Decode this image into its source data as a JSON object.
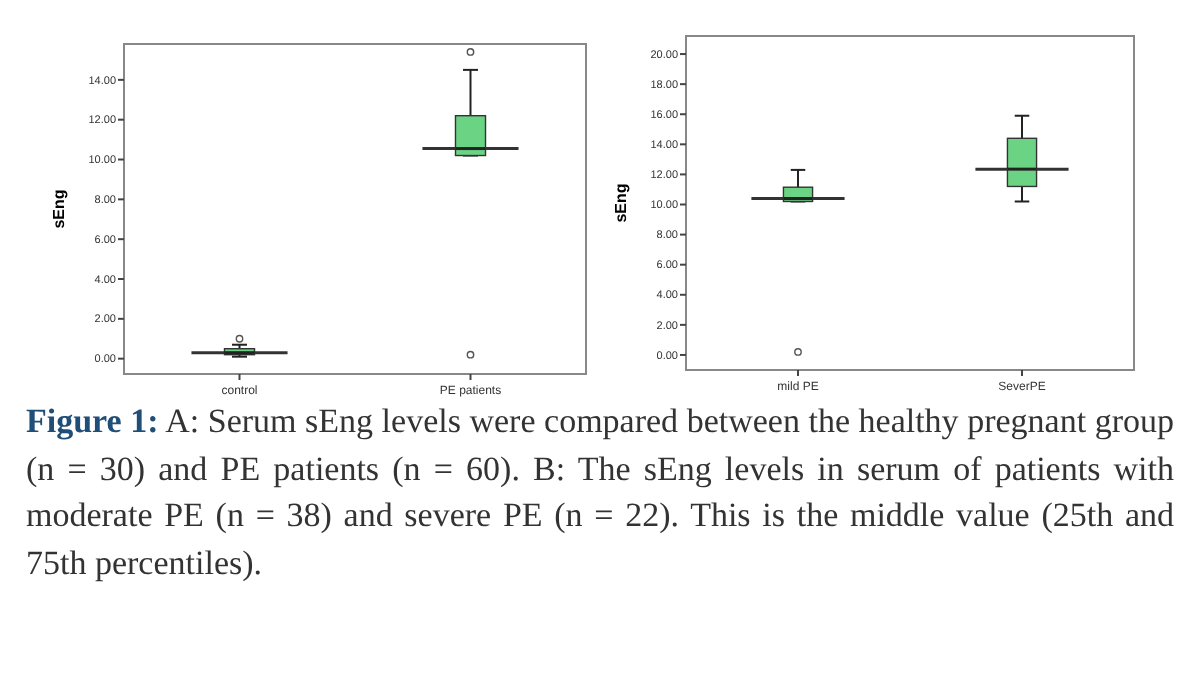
{
  "chart_data": [
    {
      "type": "box",
      "ylabel": "sEng",
      "categories": [
        "control",
        "PE patients"
      ],
      "color": "#6bd384",
      "ylim": [
        -0.77,
        15.8
      ],
      "yticks": [
        {
          "value": 0,
          "label": "0.00"
        },
        {
          "value": 2,
          "label": "2.00"
        },
        {
          "value": 4,
          "label": "4.00"
        },
        {
          "value": 6,
          "label": "6.00"
        },
        {
          "value": 8,
          "label": "8.00"
        },
        {
          "value": 10,
          "label": "10.00"
        },
        {
          "value": 12,
          "label": "12.00"
        },
        {
          "value": 14,
          "label": "14.00"
        }
      ],
      "grid": false,
      "boxes": [
        {
          "low": 0.1,
          "q1": 0.2,
          "median": 0.3,
          "q3": 0.5,
          "high": 0.7,
          "outliers": [
            1.0
          ]
        },
        {
          "low": 10.2,
          "q1": 10.2,
          "median": 10.55,
          "q3": 12.2,
          "high": 14.5,
          "outliers": [
            15.4,
            0.2
          ]
        }
      ],
      "annotations": [
        "Figure 1:",
        "A: Serum sEng levels were compared between the healthy pregnant group (n = 30) and PE patients (n = 60). B: The sEng levels in   serum of patients with moderate PE (n = 38) and severe PE (n = 22). This is the middle value (25th and 75th percentiles)."
      ]
    },
    {
      "type": "box",
      "ylabel": "sEng",
      "categories": [
        "mild PE",
        "SeverPE"
      ],
      "color": "#6bd384",
      "ylim": [
        -1,
        21.2
      ],
      "yticks": [
        {
          "value": 0,
          "label": "0.00"
        },
        {
          "value": 2,
          "label": "2.00"
        },
        {
          "value": 4,
          "label": "4.00"
        },
        {
          "value": 6,
          "label": "6.00"
        },
        {
          "value": 8,
          "label": "8.00"
        },
        {
          "value": 10,
          "label": "10.00"
        },
        {
          "value": 12,
          "label": "12.00"
        },
        {
          "value": 14,
          "label": "14.00"
        },
        {
          "value": 16,
          "label": "16.00"
        },
        {
          "value": 18,
          "label": "18.00"
        },
        {
          "value": 20,
          "label": "20.00"
        }
      ],
      "grid": false,
      "boxes": [
        {
          "low": 10.2,
          "q1": 10.2,
          "median": 10.4,
          "q3": 11.15,
          "high": 12.3,
          "outliers": [
            0.2
          ]
        },
        {
          "low": 10.2,
          "q1": 11.2,
          "median": 12.35,
          "q3": 14.4,
          "high": 15.9
        }
      ]
    }
  ]
}
